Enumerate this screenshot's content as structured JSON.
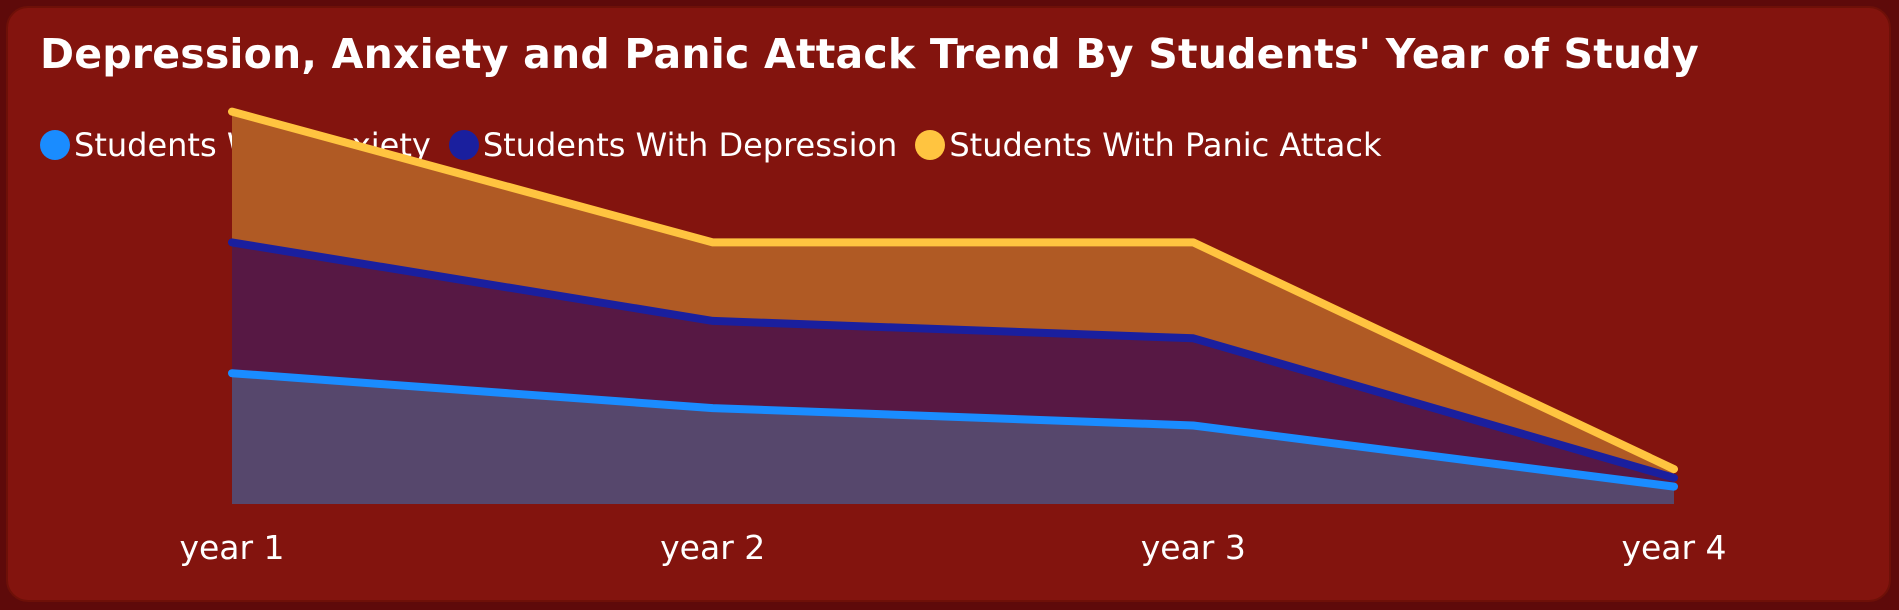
{
  "chart_data": {
    "type": "area",
    "title": "Depression, Anxiety and Panic Attack Trend By Students' Year of Study",
    "categories": [
      "year 1",
      "year 2",
      "year 3",
      "year 4"
    ],
    "series": [
      {
        "name": "Students With Anxiety",
        "values": [
          15,
          11,
          9,
          2
        ],
        "color": "#1a8cff"
      },
      {
        "name": "Students With Depression",
        "values": [
          30,
          21,
          19,
          3
        ],
        "color": "#1a1f9e"
      },
      {
        "name": "Students With Panic Attack",
        "values": [
          45,
          30,
          30,
          4
        ],
        "color": "#ffc440"
      }
    ],
    "ylim": [
      0,
      50
    ],
    "grid": false,
    "legend": "top-left",
    "background": "#83140e"
  }
}
